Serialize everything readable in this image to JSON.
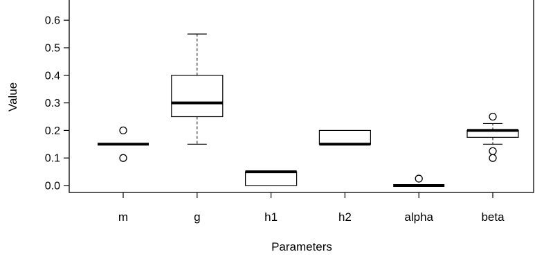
{
  "chart_data": {
    "type": "boxplot",
    "xlabel": "Parameters",
    "ylabel": "Value",
    "ylim": [
      -0.03,
      0.67
    ],
    "yticks": [
      "0.0",
      "0.1",
      "0.2",
      "0.3",
      "0.4",
      "0.5",
      "0.6"
    ],
    "grid": false,
    "categories": [
      "m",
      "g",
      "h1",
      "h2",
      "alpha",
      "beta"
    ],
    "boxes": [
      {
        "name": "m",
        "whisker_low": 0.15,
        "q1": 0.15,
        "median": 0.15,
        "q3": 0.15,
        "whisker_high": 0.15,
        "outliers": [
          0.1,
          0.2
        ]
      },
      {
        "name": "g",
        "whisker_low": 0.15,
        "q1": 0.25,
        "median": 0.3,
        "q3": 0.4,
        "whisker_high": 0.55,
        "outliers": []
      },
      {
        "name": "h1",
        "whisker_low": 0.0,
        "q1": 0.0,
        "median": 0.05,
        "q3": 0.05,
        "whisker_high": 0.05,
        "outliers": []
      },
      {
        "name": "h2",
        "whisker_low": 0.15,
        "q1": 0.15,
        "median": 0.15,
        "q3": 0.2,
        "whisker_high": 0.2,
        "outliers": []
      },
      {
        "name": "alpha",
        "whisker_low": 0.0,
        "q1": 0.0,
        "median": 0.0,
        "q3": 0.0,
        "whisker_high": 0.0,
        "outliers": [
          0.025
        ]
      },
      {
        "name": "beta",
        "whisker_low": 0.15,
        "q1": 0.175,
        "median": 0.2,
        "q3": 0.2,
        "whisker_high": 0.225,
        "outliers": [
          0.1,
          0.125,
          0.25
        ]
      }
    ]
  }
}
